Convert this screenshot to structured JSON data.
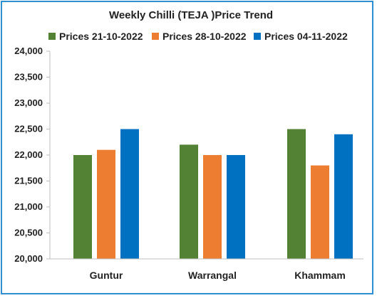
{
  "chart_data": {
    "type": "bar",
    "title": "Weekly Chilli (TEJA )Price Trend",
    "categories": [
      "Guntur",
      "Warrangal",
      "Khammam"
    ],
    "series": [
      {
        "name": "Prices 21-10-2022",
        "color": "#548235",
        "values": [
          22000,
          22200,
          22500
        ]
      },
      {
        "name": "Prices 28-10-2022",
        "color": "#ed7d31",
        "values": [
          22100,
          22000,
          21800
        ]
      },
      {
        "name": "Prices 04-11-2022",
        "color": "#0070c0",
        "values": [
          22500,
          22000,
          22400
        ]
      }
    ],
    "ylim": [
      20000,
      24000
    ],
    "yticks": [
      "20,000",
      "20,500",
      "21,000",
      "21,500",
      "22,000",
      "22,500",
      "23,000",
      "23,500",
      "24,000"
    ],
    "ytick_values": [
      20000,
      20500,
      21000,
      21500,
      22000,
      22500,
      23000,
      23500,
      24000
    ],
    "legend_position": "top",
    "grid": false,
    "border_color": "#2f8fd0"
  }
}
